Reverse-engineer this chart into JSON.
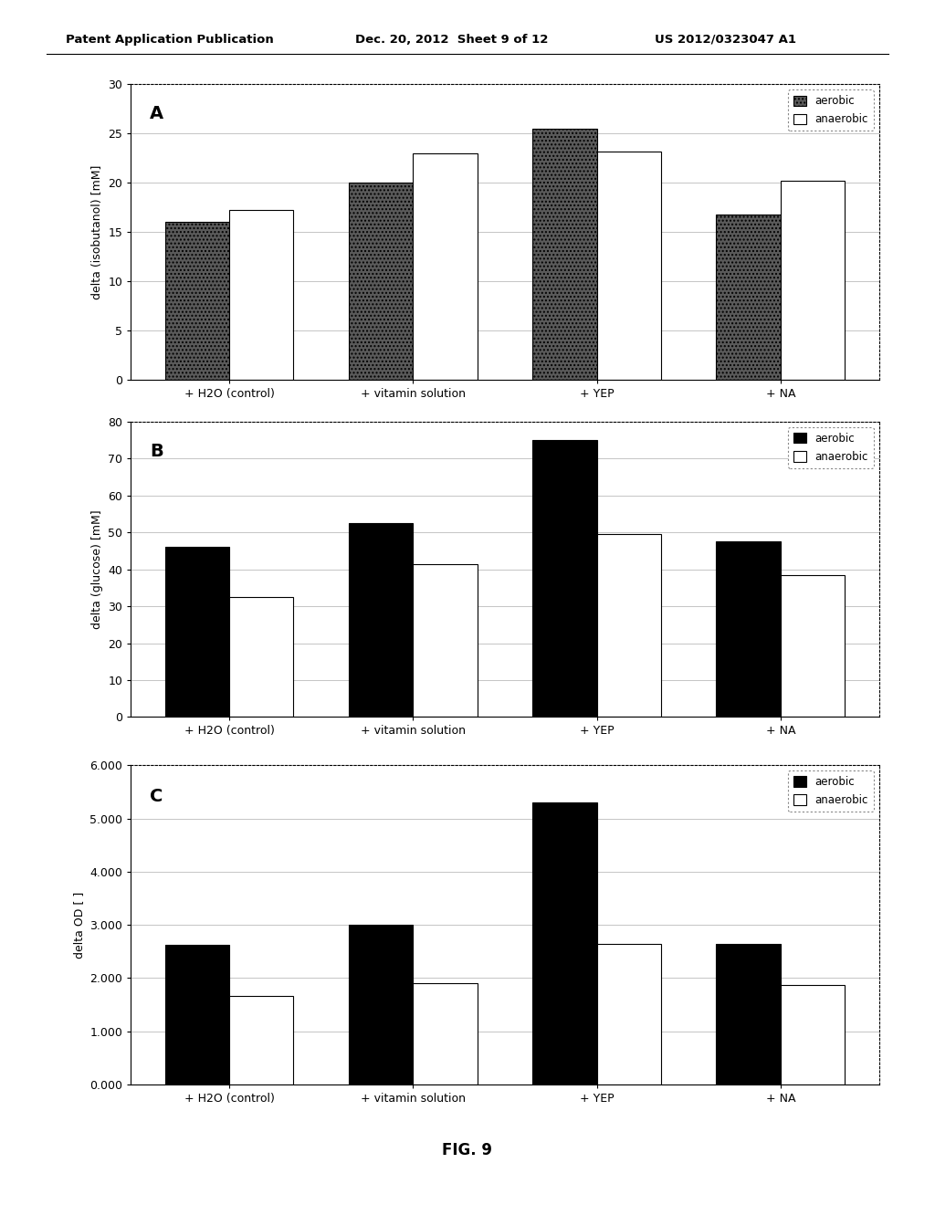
{
  "categories": [
    "+ H2O (control)",
    "+ vitamin solution",
    "+ YEP",
    "+ NA"
  ],
  "chart_A": {
    "label": "A",
    "aerobic": [
      16,
      20,
      25.5,
      16.8
    ],
    "anaerobic": [
      17.2,
      23,
      23.2,
      20.2
    ],
    "ylabel": "delta (isobutanol) [mM]",
    "ylim": [
      0,
      30
    ],
    "yticks": [
      0,
      5,
      10,
      15,
      20,
      25,
      30
    ]
  },
  "chart_B": {
    "label": "B",
    "aerobic": [
      46,
      52.5,
      75,
      47.5
    ],
    "anaerobic": [
      32.5,
      41.5,
      49.5,
      38.5
    ],
    "ylabel": "delta (glucose) [mM]",
    "ylim": [
      0,
      80
    ],
    "yticks": [
      0,
      10,
      20,
      30,
      40,
      50,
      60,
      70,
      80
    ]
  },
  "chart_C": {
    "label": "C",
    "aerobic": [
      2.62,
      3.0,
      5.3,
      2.65
    ],
    "anaerobic": [
      1.67,
      1.9,
      2.65,
      1.87
    ],
    "ylabel": "delta OD [ ]",
    "ylim": [
      0.0,
      6.0
    ],
    "yticks": [
      0.0,
      1.0,
      2.0,
      3.0,
      4.0,
      5.0,
      6.0
    ],
    "yticklabels": [
      "0.000",
      "1.000",
      "2.000",
      "3.000",
      "4.000",
      "5.000",
      "6.000"
    ]
  },
  "aerobic_color_A": "#5a5a5a",
  "anaerobic_color_A": "#ffffff",
  "aerobic_color_BC": "#000000",
  "anaerobic_color_BC": "#ffffff",
  "bar_width": 0.35,
  "edge_color": "#000000",
  "grid_color": "#bbbbbb",
  "hatch_A": "....",
  "fig_title_left": "Patent Application Publication",
  "fig_title_center": "Dec. 20, 2012  Sheet 9 of 12",
  "fig_title_right": "US 2012/0323047 A1",
  "fig_label": "FIG. 9",
  "background_color": "#ffffff"
}
